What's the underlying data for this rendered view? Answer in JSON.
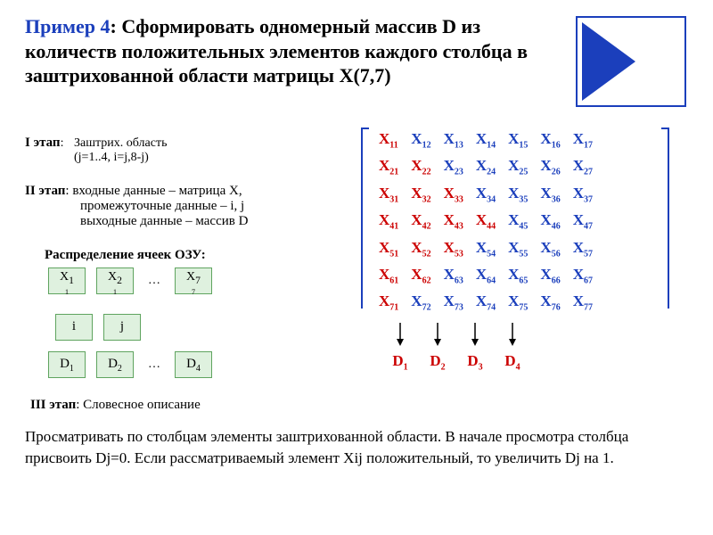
{
  "title": {
    "lead": "Пример 4",
    "text": ": Сформировать одномерный массив D из количеств положительных элементов каждого столбца в заштрихованной области матрицы Х(7,7)",
    "color_lead": "#1b3fbc",
    "color_text": "#000000",
    "fontsize": 22
  },
  "shape": {
    "border_color": "#1b3fbc",
    "fill_color": "#1b3fbc"
  },
  "stage1": {
    "label": "I этап",
    "line1": "Заштрих. область",
    "line2": "(j=1..4,  i=j,8-j)"
  },
  "stage2": {
    "label": "II этап",
    "l1": ": входные данные – матрица X,",
    "l2": "промежуточные данные – i, j",
    "l3": "выходные данные – массив D"
  },
  "ram_title": "Распределение ячеек ОЗУ:",
  "ram": {
    "row1": [
      {
        "top": "X",
        "bot": "1",
        "sub": "1"
      },
      {
        "top": "X",
        "bot": "1",
        "sub": "2"
      }
    ],
    "row1_dots": "…",
    "row1_last": {
      "top": "X",
      "bot": "7",
      "sub": "7"
    },
    "row2": [
      "i",
      "j"
    ],
    "row3": [
      "D",
      "D"
    ],
    "row3_sub": [
      "1",
      "2"
    ],
    "row3_dots": "…",
    "row3_last": "D",
    "row3_last_sub": "4",
    "box_bg": "#dff1df",
    "box_border": "#5fa45f"
  },
  "matrix": {
    "n": 7,
    "color_normal": "#1b3fbc",
    "color_highlight": "#cc0000",
    "bracket_color": "#1b3fbc"
  },
  "arrows": {
    "count": 4,
    "labels": [
      "D",
      "D",
      "D",
      "D"
    ],
    "subs": [
      "1",
      "2",
      "3",
      "4"
    ],
    "color": "#cc0000",
    "arrow_color": "#000000"
  },
  "stage3": {
    "label": "III этап",
    "text": ": Словесное описание"
  },
  "paragraph": "Просматривать по столбцам элементы заштрихованной области. В начале просмотра столбца присвоить Dj=0. Если рассматриваемый элемент Xij положительный, то увеличить Dj на 1."
}
